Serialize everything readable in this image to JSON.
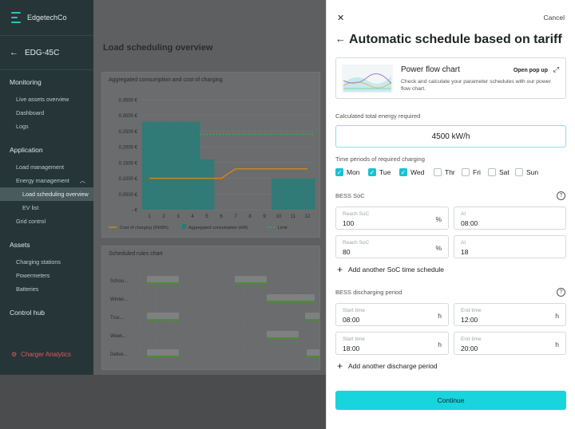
{
  "sidebar": {
    "brand": "EdgetechCo",
    "device": "EDG-45C",
    "sections": [
      {
        "title": "Monitoring",
        "items": [
          "Live assets overview",
          "Dashboard",
          "Logs"
        ]
      },
      {
        "title": "Application",
        "items": [
          "Load management",
          "Energy management",
          "Load scheduling overview",
          "EV list",
          "Grid control"
        ]
      },
      {
        "title": "Assets",
        "items": [
          "Charging stations",
          "Powermeters",
          "Batteries"
        ]
      },
      {
        "title": "Control hub",
        "items": []
      }
    ],
    "charger_analytics": "Charger Analytics"
  },
  "main": {
    "page_title": "Load scheduling overview",
    "chart1_title": "Aggregated consumption and cost of charging",
    "chart2_title": "Scheduled rules chart",
    "chart2_rows": [
      "Schoo...",
      "Winter...",
      "Truc...",
      "Week...",
      "Delive..."
    ]
  },
  "chart_data": {
    "type": "bar",
    "title": "Aggregated consumption and cost of charging",
    "categories": [
      "1",
      "2",
      "3",
      "4",
      "5",
      "6",
      "7",
      "8",
      "9",
      "10",
      "11",
      "12"
    ],
    "yticks": [
      "0.3500 €",
      "0.3000 €",
      "0.2500 €",
      "0.2000 €",
      "0.1500 €",
      "0.1000 €",
      "0.0500 €",
      "- €"
    ],
    "ylim": [
      0,
      0.35
    ],
    "series": [
      {
        "name": "Cost of charging (€/kWh)",
        "type": "line",
        "color": "#c9871f",
        "values": [
          0.1,
          0.1,
          0.1,
          0.1,
          0.1,
          0.1,
          0.13,
          0.13,
          0.13,
          0.13,
          0.13,
          0.13
        ]
      },
      {
        "name": "Aggregated consumption (kW)",
        "type": "bar",
        "color": "#1e7f78",
        "values": [
          0.28,
          0.28,
          0.28,
          0.28,
          0.16,
          0,
          0,
          0,
          0,
          0.1,
          0.1,
          0.1
        ]
      },
      {
        "name": "Limit",
        "type": "dashed",
        "color": "#2db24a",
        "values": [
          0.24,
          0.24,
          0.24,
          0.24,
          0.24,
          0.24,
          0.24,
          0.24,
          0.24,
          0.24,
          0.24,
          0.24
        ]
      }
    ],
    "legend_position": "bottom"
  },
  "panel": {
    "cancel": "Cancel",
    "title": "Automatic schedule based on tariff",
    "power_flow": {
      "title": "Power flow chart",
      "desc": "Check and calculate your parameter schedules with our power flow chart.",
      "open": "Open pop up"
    },
    "energy_label": "Calculated total energy required",
    "energy_value": "4500 kW/h",
    "periods_label": "Time periods of required charging",
    "days": [
      {
        "label": "Mon",
        "checked": true
      },
      {
        "label": "Tue",
        "checked": true
      },
      {
        "label": "Wed",
        "checked": true
      },
      {
        "label": "Thr",
        "checked": false
      },
      {
        "label": "Fri",
        "checked": false
      },
      {
        "label": "Sat",
        "checked": false
      },
      {
        "label": "Sun",
        "checked": false
      }
    ],
    "bess_soc_label": "BESS SoC",
    "soc_rows": [
      {
        "reach_label": "Reach SoC",
        "reach_value": "100",
        "reach_unit": "%",
        "at_label": "At",
        "at_value": "08:00"
      },
      {
        "reach_label": "Reach SoC",
        "reach_value": "80",
        "reach_unit": "%",
        "at_label": "At",
        "at_value": "18"
      }
    ],
    "add_soc": "Add another SoC time schedule",
    "discharge_label": "BESS discharging period",
    "discharge_rows": [
      {
        "start_label": "Start time",
        "start_value": "08:00",
        "end_label": "End time",
        "end_value": "12:00",
        "unit": "h"
      },
      {
        "start_label": "Start time",
        "start_value": "18:00",
        "end_label": "End time",
        "end_value": "20:00",
        "unit": "h"
      }
    ],
    "add_discharge": "Add another discharge period",
    "continue": "Continue",
    "accent": "#17c2ce"
  }
}
